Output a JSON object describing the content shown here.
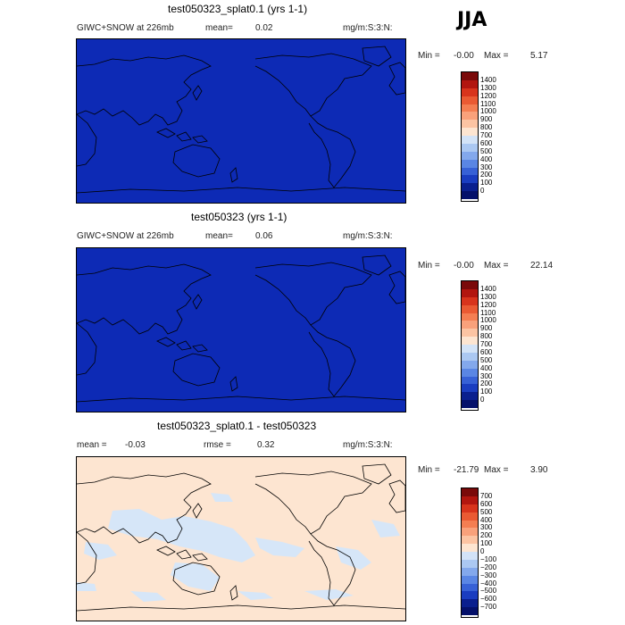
{
  "season": "JJA",
  "panels": [
    {
      "title": "test050323_splat0.1 (yrs 1-1)",
      "variable": "GIWC+SNOW at 226mb",
      "mean_label": "mean=",
      "mean_value": "0.02",
      "units": "mg/m:S:3:N:",
      "min_label": "Min =",
      "min_value": "-0.00",
      "max_label": "Max =",
      "max_value": "5.17",
      "fill": "#0d2ab5",
      "colorbar": [
        "1400",
        "1300",
        "1200",
        "1100",
        "1000",
        "900",
        "800",
        "700",
        "600",
        "500",
        "400",
        "300",
        "200",
        "100",
        "0"
      ]
    },
    {
      "title": "test050323 (yrs 1-1)",
      "variable": "GIWC+SNOW at 226mb",
      "mean_label": "mean=",
      "mean_value": "0.06",
      "units": "mg/m:S:3:N:",
      "min_label": "Min =",
      "min_value": "-0.00",
      "max_label": "Max =",
      "max_value": "22.14",
      "fill": "#0d2ab5",
      "colorbar": [
        "1400",
        "1300",
        "1200",
        "1100",
        "1000",
        "900",
        "800",
        "700",
        "600",
        "500",
        "400",
        "300",
        "200",
        "100",
        "0"
      ]
    },
    {
      "title": "test050323_splat0.1 - test050323",
      "mean_label": "mean =",
      "mean_value": "-0.03",
      "rmse_label": "rmse =",
      "rmse_value": "0.32",
      "units": "mg/m:S:3:N:",
      "min_label": "Min =",
      "min_value": "-21.79",
      "max_label": "Max =",
      "max_value": "3.90",
      "fill": "#fde5d1",
      "patch_fill": "#d6e6f8",
      "colorbar": [
        "700",
        "600",
        "500",
        "400",
        "300",
        "200",
        "100",
        "0",
        "−100",
        "−200",
        "−300",
        "−400",
        "−500",
        "−600",
        "−700"
      ]
    }
  ],
  "colors": {
    "abs_scale": [
      "#7a0a0a",
      "#b2160f",
      "#d8341c",
      "#ea5a33",
      "#f47e52",
      "#f9a17b",
      "#fcc4a3",
      "#fde5d1",
      "#d3e3f7",
      "#abc8f2",
      "#83a8ec",
      "#5a86e4",
      "#3761d6",
      "#1a3dc0",
      "#0a1f8e",
      "#04106a"
    ],
    "diff_scale": [
      "#7a0a0a",
      "#b2160f",
      "#d8341c",
      "#ea5a33",
      "#f47e52",
      "#f9a17b",
      "#fcc4a3",
      "#fde5d1",
      "#d3e3f7",
      "#abc8f2",
      "#83a8ec",
      "#5a86e4",
      "#3761d6",
      "#1a3dc0",
      "#0a1f8e",
      "#04106a"
    ]
  },
  "chart_data": [
    {
      "type": "heatmap",
      "title": "test050323_splat0.1 (yrs 1-1)",
      "field": "GIWC+SNOW at 226mb",
      "units": "mg/m:S:3:N:",
      "season": "JJA",
      "mean": 0.02,
      "min": -0.0,
      "max": 5.17,
      "contour_levels": [
        0,
        100,
        200,
        300,
        400,
        500,
        600,
        700,
        800,
        900,
        1000,
        1100,
        1200,
        1300,
        1400
      ]
    },
    {
      "type": "heatmap",
      "title": "test050323 (yrs 1-1)",
      "field": "GIWC+SNOW at 226mb",
      "units": "mg/m:S:3:N:",
      "season": "JJA",
      "mean": 0.06,
      "min": -0.0,
      "max": 22.14,
      "contour_levels": [
        0,
        100,
        200,
        300,
        400,
        500,
        600,
        700,
        800,
        900,
        1000,
        1100,
        1200,
        1300,
        1400
      ]
    },
    {
      "type": "heatmap",
      "title": "test050323_splat0.1 - test050323",
      "units": "mg/m:S:3:N:",
      "season": "JJA",
      "mean": -0.03,
      "rmse": 0.32,
      "min": -21.79,
      "max": 3.9,
      "contour_levels": [
        -700,
        -600,
        -500,
        -400,
        -300,
        -200,
        -100,
        0,
        100,
        200,
        300,
        400,
        500,
        600,
        700
      ]
    }
  ]
}
